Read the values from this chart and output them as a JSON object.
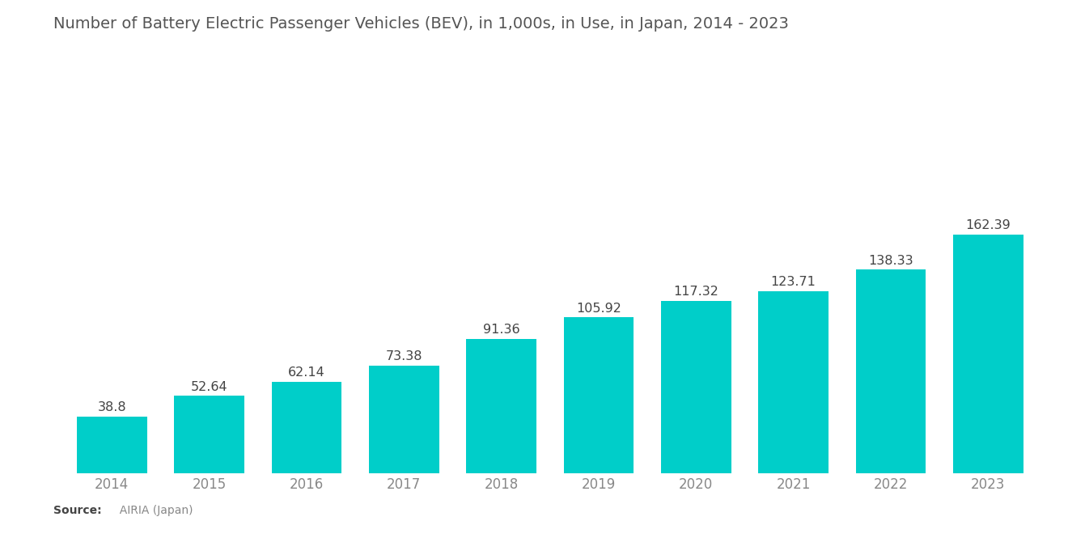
{
  "title": "Number of Battery Electric Passenger Vehicles (BEV), in 1,000s, in Use, in Japan, 2014 - 2023",
  "years": [
    2014,
    2015,
    2016,
    2017,
    2018,
    2019,
    2020,
    2021,
    2022,
    2023
  ],
  "values": [
    38.8,
    52.64,
    62.14,
    73.38,
    91.36,
    105.92,
    117.32,
    123.71,
    138.33,
    162.39
  ],
  "bar_color": "#00CEC9",
  "background_color": "#ffffff",
  "title_color": "#555555",
  "label_color": "#444444",
  "tick_color": "#888888",
  "source_bold": "Source:",
  "source_text": "  AIRIA (Japan)",
  "title_fontsize": 14,
  "label_fontsize": 11.5,
  "tick_fontsize": 12,
  "source_fontsize": 10,
  "ylim": [
    0,
    190
  ],
  "bar_width": 0.72
}
